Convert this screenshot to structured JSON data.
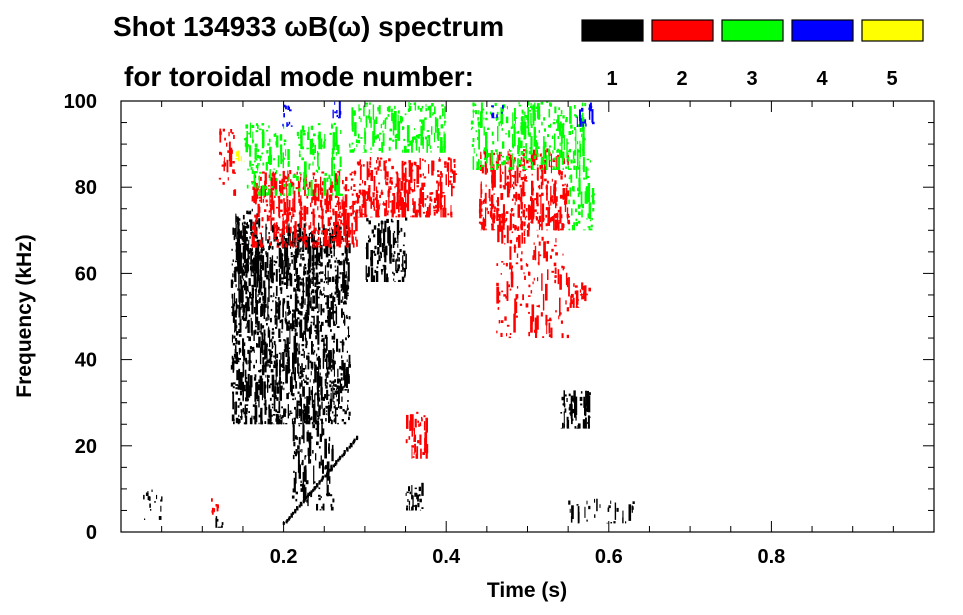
{
  "chart_data": {
    "type": "heatmap",
    "title_line1": "Shot 134933 ωB(ω) spectrum",
    "title_line2": "for toroidal mode number:",
    "xlabel": "Time (s)",
    "ylabel": "Frequency (kHz)",
    "xlim": [
      0.0,
      1.0
    ],
    "ylim": [
      0,
      100
    ],
    "x_ticks": [
      0.2,
      0.4,
      0.6,
      0.8
    ],
    "x_tick_labels": [
      "0.2",
      "0.4",
      "0.6",
      "0.8"
    ],
    "y_ticks": [
      0,
      20,
      40,
      60,
      80,
      100
    ],
    "y_tick_labels": [
      "0",
      "20",
      "40",
      "60",
      "80",
      "100"
    ],
    "legend": [
      {
        "label": "1",
        "color": "#000000"
      },
      {
        "label": "2",
        "color": "#ff0000"
      },
      {
        "label": "3",
        "color": "#00ff00"
      },
      {
        "label": "4",
        "color": "#0000ff"
      },
      {
        "label": "5",
        "color": "#ffff00"
      }
    ],
    "legend_position": "top-right",
    "series": [
      {
        "name": "1",
        "color": "#000000",
        "regions": [
          {
            "t": [
              0.135,
              0.28
            ],
            "f": [
              25,
              72
            ],
            "density": 0.85
          },
          {
            "t": [
              0.14,
              0.17
            ],
            "f": [
              60,
              75
            ],
            "density": 0.9
          },
          {
            "t": [
              0.21,
              0.26
            ],
            "f": [
              5,
              30
            ],
            "density": 0.45
          },
          {
            "t": [
              0.3,
              0.35
            ],
            "f": [
              58,
              73
            ],
            "density": 0.6
          },
          {
            "t": [
              0.35,
              0.37
            ],
            "f": [
              5,
              12
            ],
            "density": 0.85
          },
          {
            "t": [
              0.54,
              0.575
            ],
            "f": [
              24,
              33
            ],
            "density": 0.85
          },
          {
            "t": [
              0.11,
              0.125
            ],
            "f": [
              1,
              4
            ],
            "density": 0.6
          },
          {
            "t": [
              0.02,
              0.05
            ],
            "f": [
              2,
              10
            ],
            "density": 0.25
          },
          {
            "t": [
              0.55,
              0.63
            ],
            "f": [
              2,
              8
            ],
            "density": 0.25
          }
        ]
      },
      {
        "name": "2",
        "color": "#ff0000",
        "regions": [
          {
            "t": [
              0.16,
              0.29
            ],
            "f": [
              66,
              84
            ],
            "density": 0.75
          },
          {
            "t": [
              0.29,
              0.41
            ],
            "f": [
              73,
              87
            ],
            "density": 0.7
          },
          {
            "t": [
              0.44,
              0.55
            ],
            "f": [
              70,
              89
            ],
            "density": 0.65
          },
          {
            "t": [
              0.46,
              0.55
            ],
            "f": [
              45,
              75
            ],
            "density": 0.25
          },
          {
            "t": [
              0.55,
              0.575
            ],
            "f": [
              52,
              58
            ],
            "density": 0.7
          },
          {
            "t": [
              0.35,
              0.375
            ],
            "f": [
              17,
              28
            ],
            "density": 0.6
          },
          {
            "t": [
              0.12,
              0.14
            ],
            "f": [
              78,
              95
            ],
            "density": 0.35
          },
          {
            "t": [
              0.11,
              0.12
            ],
            "f": [
              4,
              8
            ],
            "density": 0.5
          }
        ]
      },
      {
        "name": "3",
        "color": "#00ff00",
        "regions": [
          {
            "t": [
              0.15,
              0.27
            ],
            "f": [
              78,
              95
            ],
            "density": 0.4
          },
          {
            "t": [
              0.28,
              0.4
            ],
            "f": [
              88,
              100
            ],
            "density": 0.5
          },
          {
            "t": [
              0.43,
              0.57
            ],
            "f": [
              84,
              100
            ],
            "density": 0.55
          },
          {
            "t": [
              0.55,
              0.58
            ],
            "f": [
              70,
              87
            ],
            "density": 0.5
          }
        ]
      },
      {
        "name": "4",
        "color": "#0000ff",
        "regions": [
          {
            "t": [
              0.195,
              0.21
            ],
            "f": [
              94,
              100
            ],
            "density": 0.5
          },
          {
            "t": [
              0.26,
              0.27
            ],
            "f": [
              96,
              100
            ],
            "density": 0.5
          },
          {
            "t": [
              0.455,
              0.47
            ],
            "f": [
              96,
              100
            ],
            "density": 0.5
          },
          {
            "t": [
              0.56,
              0.58
            ],
            "f": [
              94,
              100
            ],
            "density": 0.5
          }
        ]
      },
      {
        "name": "5",
        "color": "#ffff00",
        "regions": [
          {
            "t": [
              0.14,
              0.15
            ],
            "f": [
              86,
              89
            ],
            "density": 0.3
          }
        ]
      }
    ],
    "chirp": {
      "color": "#000000",
      "t": [
        0.2,
        0.29
      ],
      "f": [
        2,
        22
      ]
    }
  }
}
